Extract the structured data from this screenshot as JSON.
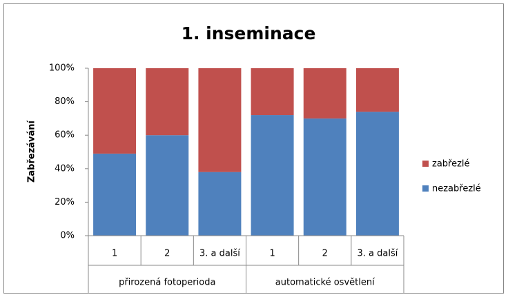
{
  "chart_data": {
    "type": "stacked-bar-100",
    "title": "1. inseminace",
    "y_label": "Zabřezávání",
    "category_groups": [
      {
        "label": "přirozená fotoperioda",
        "categories": [
          "1",
          "2",
          "3. a další"
        ]
      },
      {
        "label": "automatické osvětlení",
        "categories": [
          "1",
          "2",
          "3. a další"
        ]
      }
    ],
    "series": [
      {
        "name": "nezabřezlé",
        "color": "#4f81bd",
        "values": [
          49,
          60,
          38,
          72,
          70,
          74
        ]
      },
      {
        "name": "zabřezlé",
        "color": "#c0504d",
        "values": [
          51,
          40,
          62,
          28,
          30,
          26
        ]
      }
    ],
    "ylim": [
      0,
      100
    ],
    "yticks": [
      {
        "value": 0,
        "label": "0%"
      },
      {
        "value": 20,
        "label": "20%"
      },
      {
        "value": 40,
        "label": "40%"
      },
      {
        "value": 60,
        "label": "60%"
      },
      {
        "value": 80,
        "label": "80%"
      },
      {
        "value": 100,
        "label": "100%"
      }
    ],
    "grid": false,
    "legend": "right"
  }
}
